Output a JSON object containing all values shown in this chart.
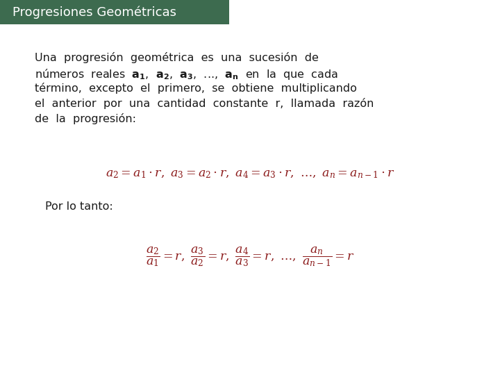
{
  "title": "Progresiones Geométricas",
  "title_bg_color": "#3d6b4f",
  "title_text_color": "#ffffff",
  "title_fontsize": 13,
  "body_text_color": "#1a1a1a",
  "red_color": "#8b1a1a",
  "body_fontsize": 11.5,
  "por_lo_tanto": "Por lo tanto:",
  "bg_color": "#ffffff",
  "paragraph_lines": [
    "Una  progresión  geométrica  es  una  sucesión  de",
    "números  reales  $\\mathbf{a_1}$,  $\\mathbf{a_2}$,  $\\mathbf{a_3}$,  ...,  $\\mathbf{a_n}$  en  la  que  cada",
    "término,  excepto  el  primero,  se  obtiene  multiplicando",
    "el  anterior  por  una  cantidad  constante  r,  llamada  razón",
    "de  la  progresión:"
  ]
}
